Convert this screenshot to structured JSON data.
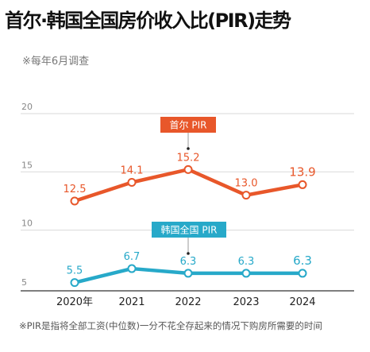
{
  "title": "首尔·韩国全国房价收入比(PIR)走势",
  "subtitle": "※每年6月调查",
  "note": "※PIR是指将全部工资(中位数)一分不花全存起来的情况下购房所需要的时间",
  "colors": {
    "seoul": "#e8572a",
    "national": "#27a9c9",
    "grid": "#d9d9d9"
  },
  "chart_data": {
    "type": "line",
    "categories": [
      "2020年",
      "2021",
      "2022",
      "2023",
      "2024"
    ],
    "y_ticks": [
      "20",
      "15",
      "10",
      "5"
    ],
    "ylim": [
      5,
      20
    ],
    "grid": true,
    "series": [
      {
        "name": "首尔 PIR",
        "values": [
          12.5,
          14.1,
          15.2,
          13.0,
          13.9
        ],
        "labels": [
          "12.5",
          "14.1",
          "15.2",
          "13.0",
          "13.9"
        ]
      },
      {
        "name": "韩国全国 PIR",
        "values": [
          5.5,
          6.7,
          6.3,
          6.3,
          6.3
        ],
        "labels": [
          "5.5",
          "6.7",
          "6.3",
          "6.3",
          "6.3"
        ]
      }
    ]
  }
}
